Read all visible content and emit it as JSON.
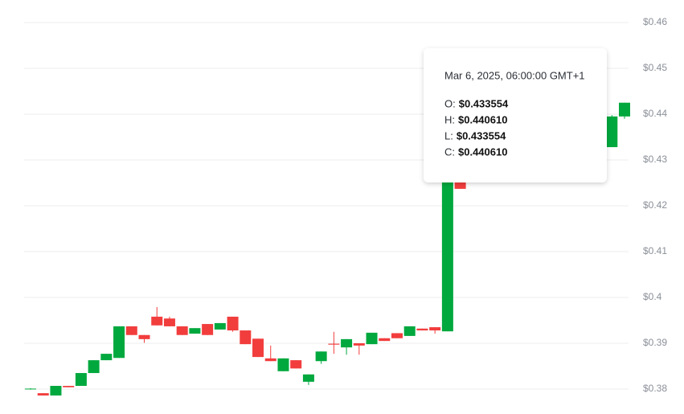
{
  "chart_data": {
    "type": "candlestick",
    "open": [
      0.38,
      0.3791,
      0.3786,
      0.3807,
      0.3807,
      0.3835,
      0.3863,
      0.3868,
      0.3937,
      0.3918,
      0.3958,
      0.3954,
      0.3937,
      0.3921,
      0.3942,
      0.393,
      0.3958,
      0.3928,
      0.391,
      0.3867,
      0.3839,
      0.3863,
      0.3816,
      0.3861,
      0.3899,
      0.3891,
      0.39,
      0.3898,
      0.3911,
      0.3922,
      0.3916,
      0.3932,
      0.3935,
      0.3926,
      0.4263,
      null,
      null,
      null,
      null,
      null,
      null,
      null,
      null,
      null,
      null,
      null,
      0.4328,
      0.4395
    ],
    "high": [
      0.3802,
      0.3791,
      0.3807,
      0.3807,
      0.3835,
      0.3863,
      0.3877,
      0.3937,
      0.3937,
      0.3918,
      0.3979,
      0.3958,
      0.3937,
      0.3933,
      0.3942,
      0.3944,
      0.3958,
      0.3928,
      0.391,
      0.3895,
      0.3867,
      0.3863,
      0.3832,
      0.3882,
      0.3925,
      0.3909,
      0.39,
      0.3923,
      0.3911,
      0.3922,
      0.3937,
      0.3932,
      0.3935,
      0.4289,
      0.4263,
      null,
      null,
      null,
      null,
      null,
      null,
      null,
      null,
      null,
      null,
      null,
      0.4398,
      0.4425
    ],
    "low": [
      0.3799,
      0.3786,
      0.3786,
      0.3804,
      0.3807,
      0.3835,
      0.3863,
      0.3868,
      0.3918,
      0.3901,
      0.3939,
      0.3937,
      0.3918,
      0.3921,
      0.3918,
      0.393,
      0.3925,
      0.3898,
      0.387,
      0.3861,
      0.3839,
      0.3845,
      0.3809,
      0.3855,
      0.3877,
      0.3875,
      0.3875,
      0.3898,
      0.3905,
      0.3911,
      0.3916,
      0.3928,
      0.3921,
      0.3926,
      0.4237,
      null,
      null,
      null,
      null,
      null,
      null,
      null,
      null,
      null,
      null,
      null,
      0.4328,
      0.439
    ],
    "close": [
      0.3801,
      0.3786,
      0.3807,
      0.3804,
      0.3835,
      0.3863,
      0.3877,
      0.3937,
      0.3918,
      0.3909,
      0.3939,
      0.3937,
      0.3918,
      0.3933,
      0.3918,
      0.3944,
      0.3928,
      0.3898,
      0.387,
      0.3861,
      0.3867,
      0.3845,
      0.3832,
      0.3882,
      0.3897,
      0.3909,
      0.3895,
      0.3923,
      0.3905,
      0.3911,
      0.3937,
      0.3928,
      0.3928,
      0.4289,
      0.4237,
      null,
      null,
      null,
      null,
      null,
      null,
      null,
      null,
      null,
      null,
      null,
      0.4395,
      0.4425
    ],
    "up_color": "#00a83e",
    "down_color": "#f23d3d",
    "ylim": [
      0.38,
      0.46
    ],
    "yticks": [
      {
        "value": 0.38,
        "label": "$0.38"
      },
      {
        "value": 0.39,
        "label": "$0.39"
      },
      {
        "value": 0.4,
        "label": "$0.4"
      },
      {
        "value": 0.41,
        "label": "$0.41"
      },
      {
        "value": 0.42,
        "label": "$0.42"
      },
      {
        "value": 0.43,
        "label": "$0.43"
      },
      {
        "value": 0.44,
        "label": "$0.44"
      },
      {
        "value": 0.45,
        "label": "$0.45"
      },
      {
        "value": 0.46,
        "label": "$0.46"
      }
    ],
    "grid": true,
    "tooltip": {
      "date": "Mar 6, 2025, 06:00:00 GMT+1",
      "rows": [
        {
          "label": "O:",
          "value": "$0.433554"
        },
        {
          "label": "H:",
          "value": "$0.440610"
        },
        {
          "label": "L:",
          "value": "$0.433554"
        },
        {
          "label": "C:",
          "value": "$0.440610"
        }
      ]
    }
  }
}
